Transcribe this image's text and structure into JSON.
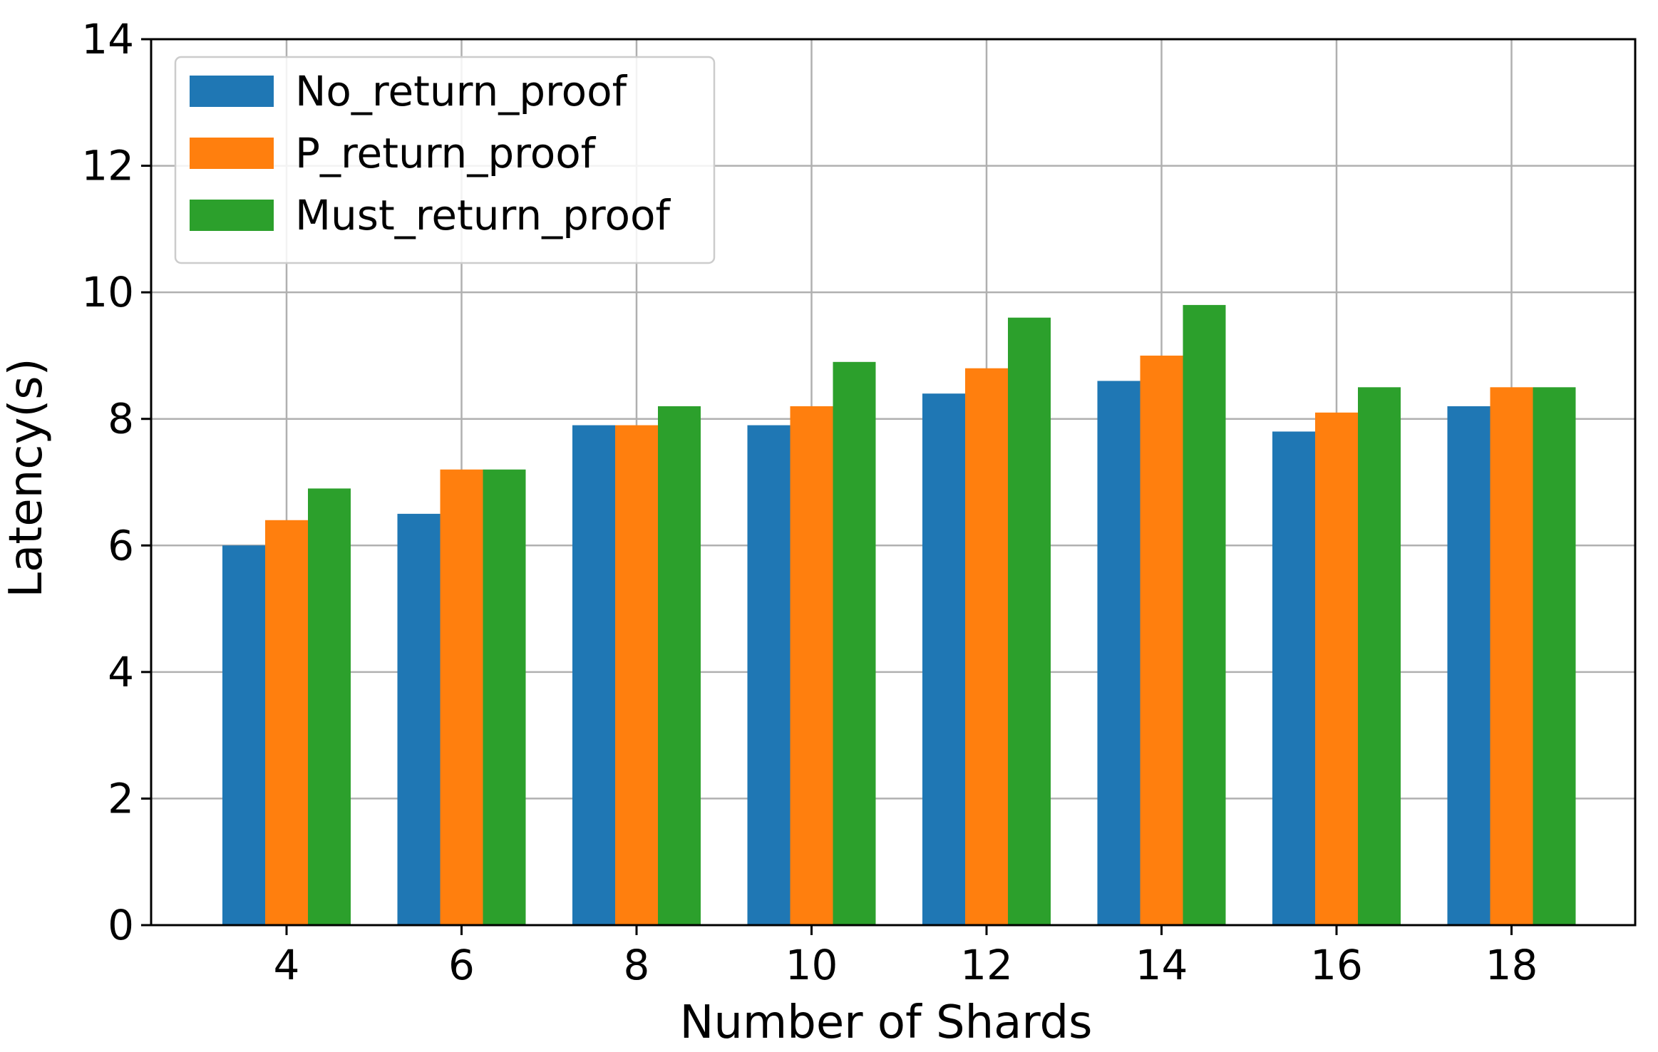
{
  "chart_data": {
    "type": "bar",
    "title": "",
    "xlabel": "Number of Shards",
    "ylabel": "Latency(s)",
    "categories": [
      "4",
      "6",
      "8",
      "10",
      "12",
      "14",
      "16",
      "18"
    ],
    "ylim": [
      0,
      14
    ],
    "yticks": [
      0,
      2,
      4,
      6,
      8,
      10,
      12,
      14
    ],
    "yticklabels": [
      "0",
      "2",
      "4",
      "6",
      "8",
      "10",
      "12",
      "14"
    ],
    "grid": true,
    "legend_position": "top-left",
    "series": [
      {
        "name": "No_return_proof",
        "color": "#1f77b4",
        "values": [
          6.0,
          6.5,
          7.9,
          7.9,
          8.4,
          8.6,
          7.8,
          8.2
        ]
      },
      {
        "name": "P_return_proof",
        "color": "#ff7f0e",
        "values": [
          6.4,
          7.2,
          7.9,
          8.2,
          8.8,
          9.0,
          8.1,
          8.5
        ]
      },
      {
        "name": "Must_return_proof",
        "color": "#2ca02c",
        "values": [
          6.9,
          7.2,
          8.2,
          8.9,
          9.6,
          9.8,
          8.5,
          8.5
        ]
      }
    ]
  }
}
